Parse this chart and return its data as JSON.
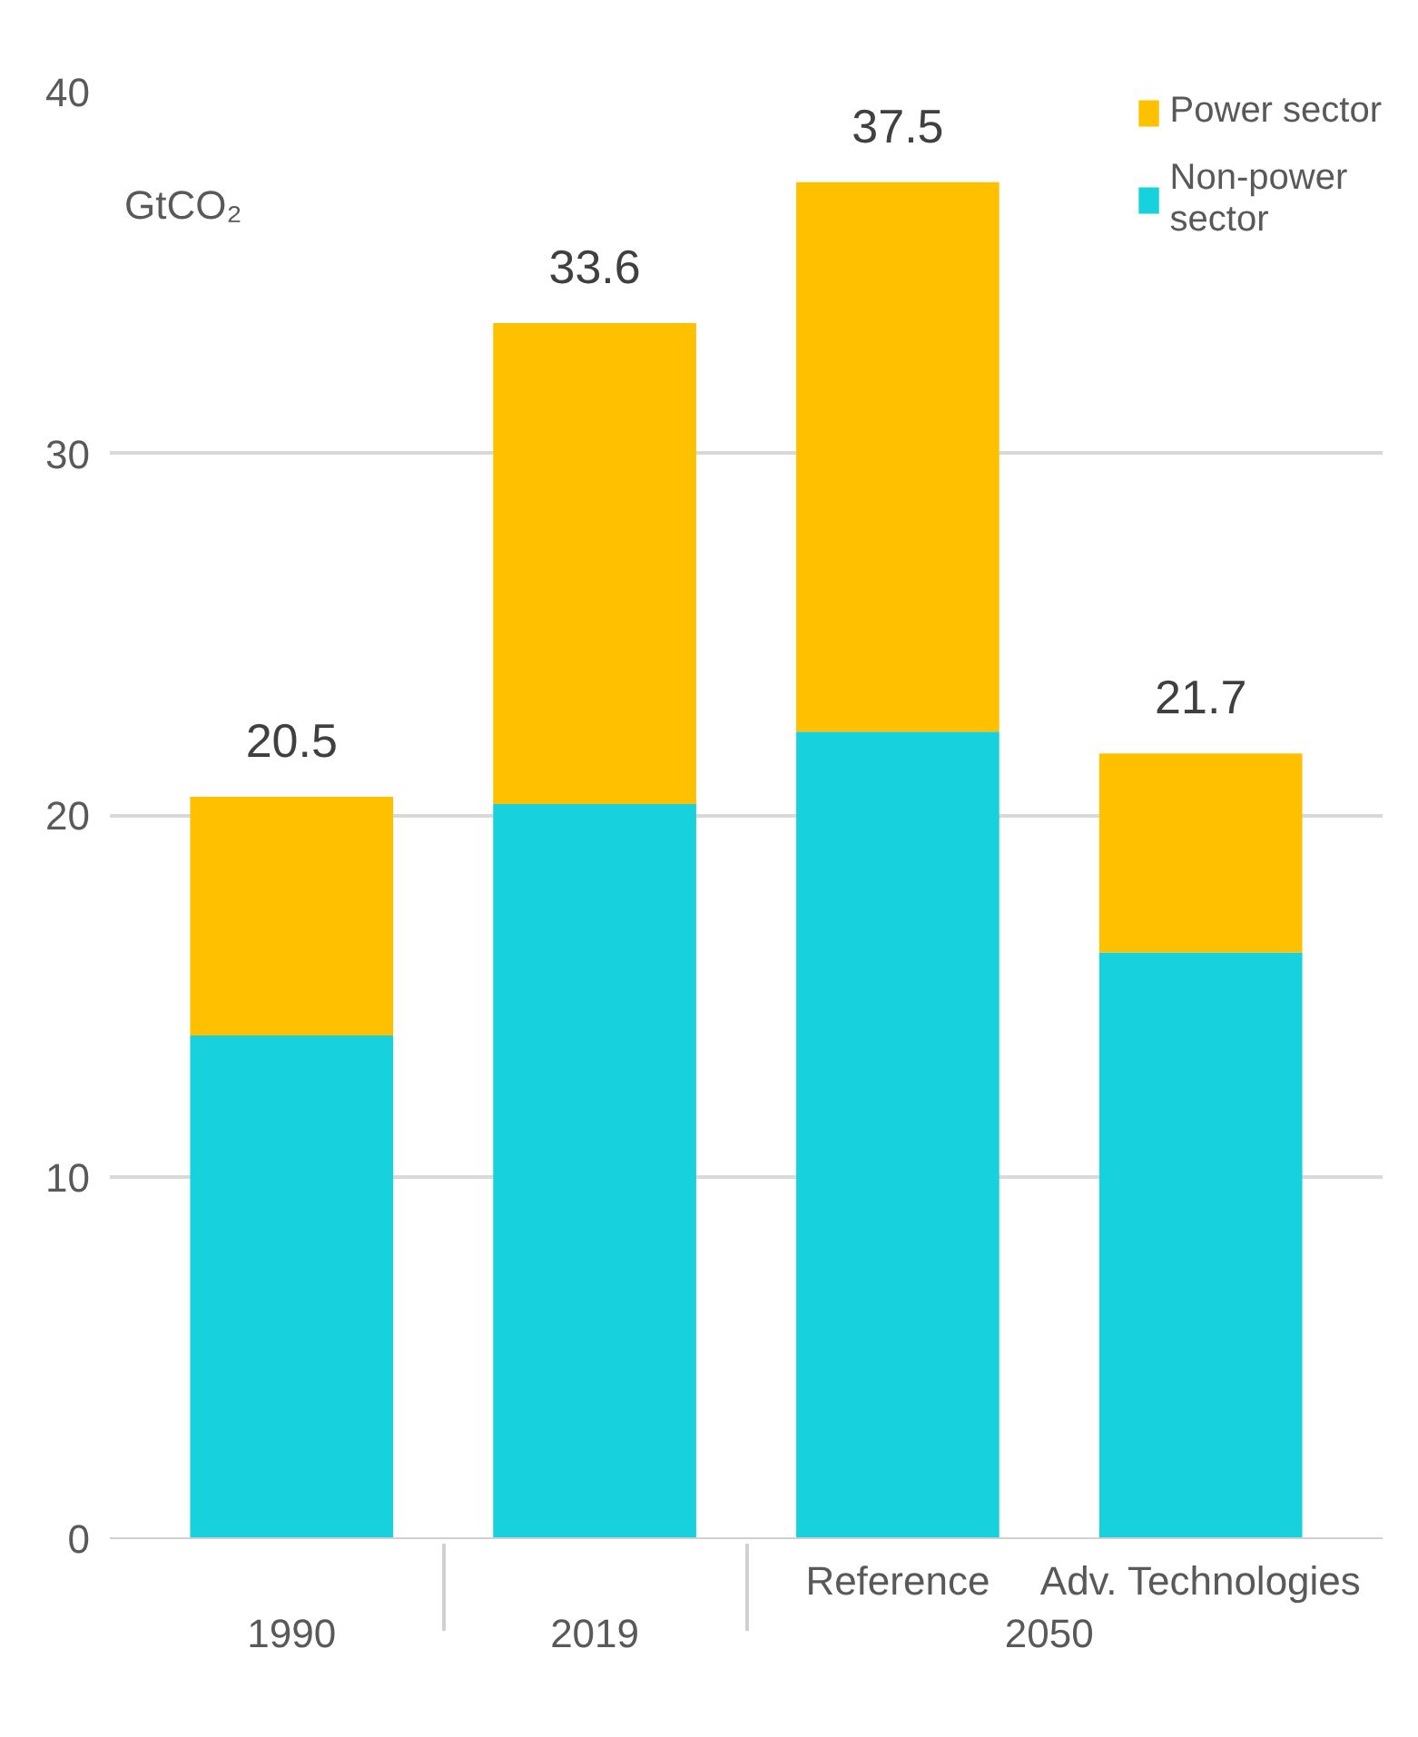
{
  "chart_data": {
    "type": "bar",
    "stacked": true,
    "ylabel": "GtCO₂",
    "categories": [
      "1990",
      "2019",
      "Reference",
      "Adv. Technologies"
    ],
    "series": [
      {
        "name": "Non-power sector",
        "color": "#17d1dc",
        "values": [
          13.9,
          20.3,
          22.3,
          16.2
        ]
      },
      {
        "name": "Power sector",
        "color": "#ffc000",
        "values": [
          6.6,
          13.3,
          15.2,
          5.5
        ]
      }
    ],
    "totals": [
      "20.5",
      "33.6",
      "37.5",
      "21.7"
    ],
    "annotations": [
      "2050"
    ],
    "ylim": [
      0,
      40
    ],
    "yticks": [
      0,
      10,
      20,
      30,
      40
    ],
    "grid": "y",
    "legend": "top right"
  }
}
